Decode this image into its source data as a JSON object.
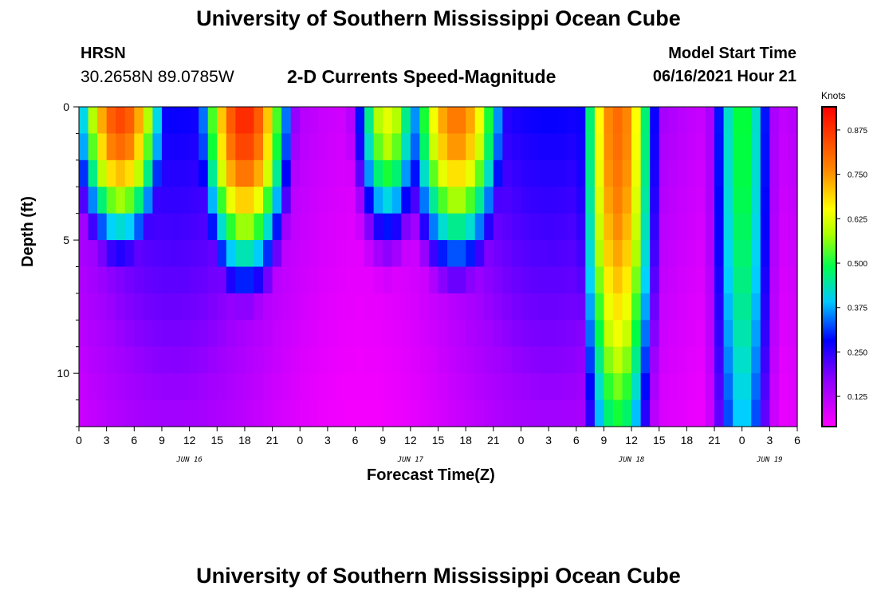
{
  "header": {
    "title": "University of Southern Mississippi Ocean Cube",
    "station_code": "HRSN",
    "station_coords": "30.2658N  89.0785W",
    "plot_title": "2-D Currents Speed-Magnitude",
    "model_start_label": "Model Start Time",
    "model_start_value": "06/16/2021 Hour 21"
  },
  "footer": {
    "title": "University of Southern Mississippi Ocean Cube"
  },
  "chart_data": {
    "type": "heatmap",
    "title": "2-D Currents Speed-Magnitude",
    "xlabel": "Forecast Time(Z)",
    "ylabel": "Depth (ft)",
    "x_hours_range": [
      0,
      78
    ],
    "x_tick_step_hours": 3,
    "x_tick_labels": [
      "0",
      "3",
      "6",
      "9",
      "12",
      "15",
      "18",
      "21",
      "0",
      "3",
      "6",
      "9",
      "12",
      "15",
      "18",
      "21",
      "0",
      "3",
      "6",
      "9",
      "12",
      "15",
      "18",
      "21",
      "0",
      "3",
      "6"
    ],
    "day_labels": [
      {
        "label": "JUN 16",
        "hour": 12
      },
      {
        "label": "JUN 17",
        "hour": 36
      },
      {
        "label": "JUN 18",
        "hour": 60
      },
      {
        "label": "JUN 19",
        "hour": 75
      }
    ],
    "ylim": [
      0,
      12
    ],
    "y_tick_labels": [
      "0",
      "5",
      "10"
    ],
    "y_tick_values": [
      0,
      5,
      10
    ],
    "colorbar": {
      "unit": "Knots",
      "range": [
        0.04,
        0.94
      ],
      "tick_labels": [
        "0.875",
        "0.750",
        "0.625",
        "0.500",
        "0.375",
        "0.250",
        "0.125"
      ],
      "tick_values": [
        0.875,
        0.75,
        0.625,
        0.5,
        0.375,
        0.25,
        0.125
      ]
    },
    "depth_levels_ft": [
      0,
      1,
      2,
      3,
      4,
      5,
      6,
      7,
      8,
      9,
      10,
      11,
      12
    ],
    "speed_events": [
      {
        "hour": 4.5,
        "surface": 0.8,
        "width_hours": 4.0,
        "half_depth_ft": 3.8
      },
      {
        "hour": 18.0,
        "surface": 0.87,
        "width_hours": 4.0,
        "half_depth_ft": 4.6
      },
      {
        "hour": 33.5,
        "surface": 0.5,
        "width_hours": 3.2,
        "half_depth_ft": 4.0
      },
      {
        "hour": 41.0,
        "surface": 0.7,
        "width_hours": 4.5,
        "half_depth_ft": 4.4
      },
      {
        "hour": 58.5,
        "surface": 0.72,
        "width_hours": 3.5,
        "half_depth_ft": 12.0
      },
      {
        "hour": 72.0,
        "surface": 0.38,
        "width_hours": 3.2,
        "half_depth_ft": 18.0
      }
    ],
    "speed_background_knots": 0.2,
    "speed_minimum_knots": 0.05
  }
}
